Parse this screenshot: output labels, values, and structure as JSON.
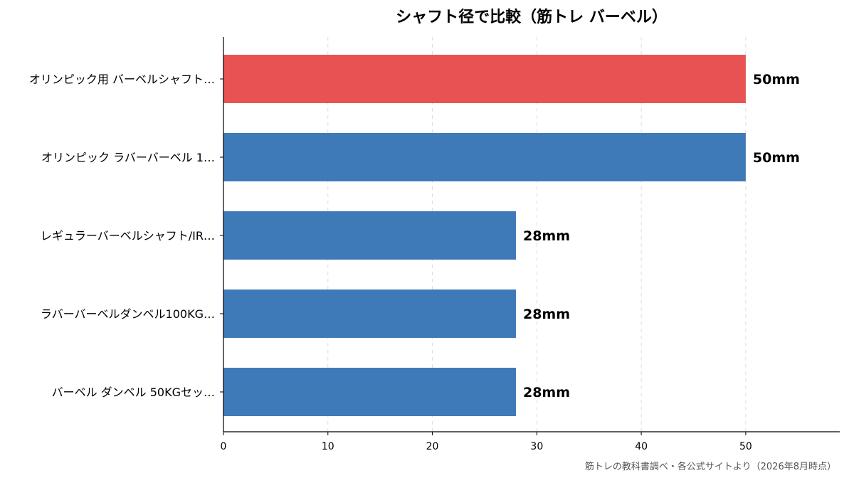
{
  "chart_data": {
    "type": "bar",
    "orientation": "horizontal",
    "title": "シャフト径で比較（筋トレ バーベル）",
    "categories": [
      "オリンピック用 バーベルシャフト…",
      "オリンピック ラバーバーベル 1…",
      "レギュラーバーベルシャフト/IR…",
      "ラバーバーベルダンベル100KG…",
      "バーベル ダンベル 50KGセッ…"
    ],
    "values": [
      50,
      50,
      28,
      28,
      28
    ],
    "value_labels": [
      "50mm",
      "50mm",
      "28mm",
      "28mm",
      "28mm"
    ],
    "unit": "mm",
    "bar_colors": [
      "#e85252",
      "#3f7ab8",
      "#3f7ab8",
      "#3f7ab8",
      "#3f7ab8"
    ],
    "xlim": [
      0,
      59
    ],
    "xticks": [
      0,
      10,
      20,
      30,
      40,
      50
    ],
    "grid": "vertical dashed",
    "xlabel": "",
    "ylabel": ""
  },
  "source_note": "筋トレの教科書調べ・各公式サイトより（2026年8月時点）"
}
